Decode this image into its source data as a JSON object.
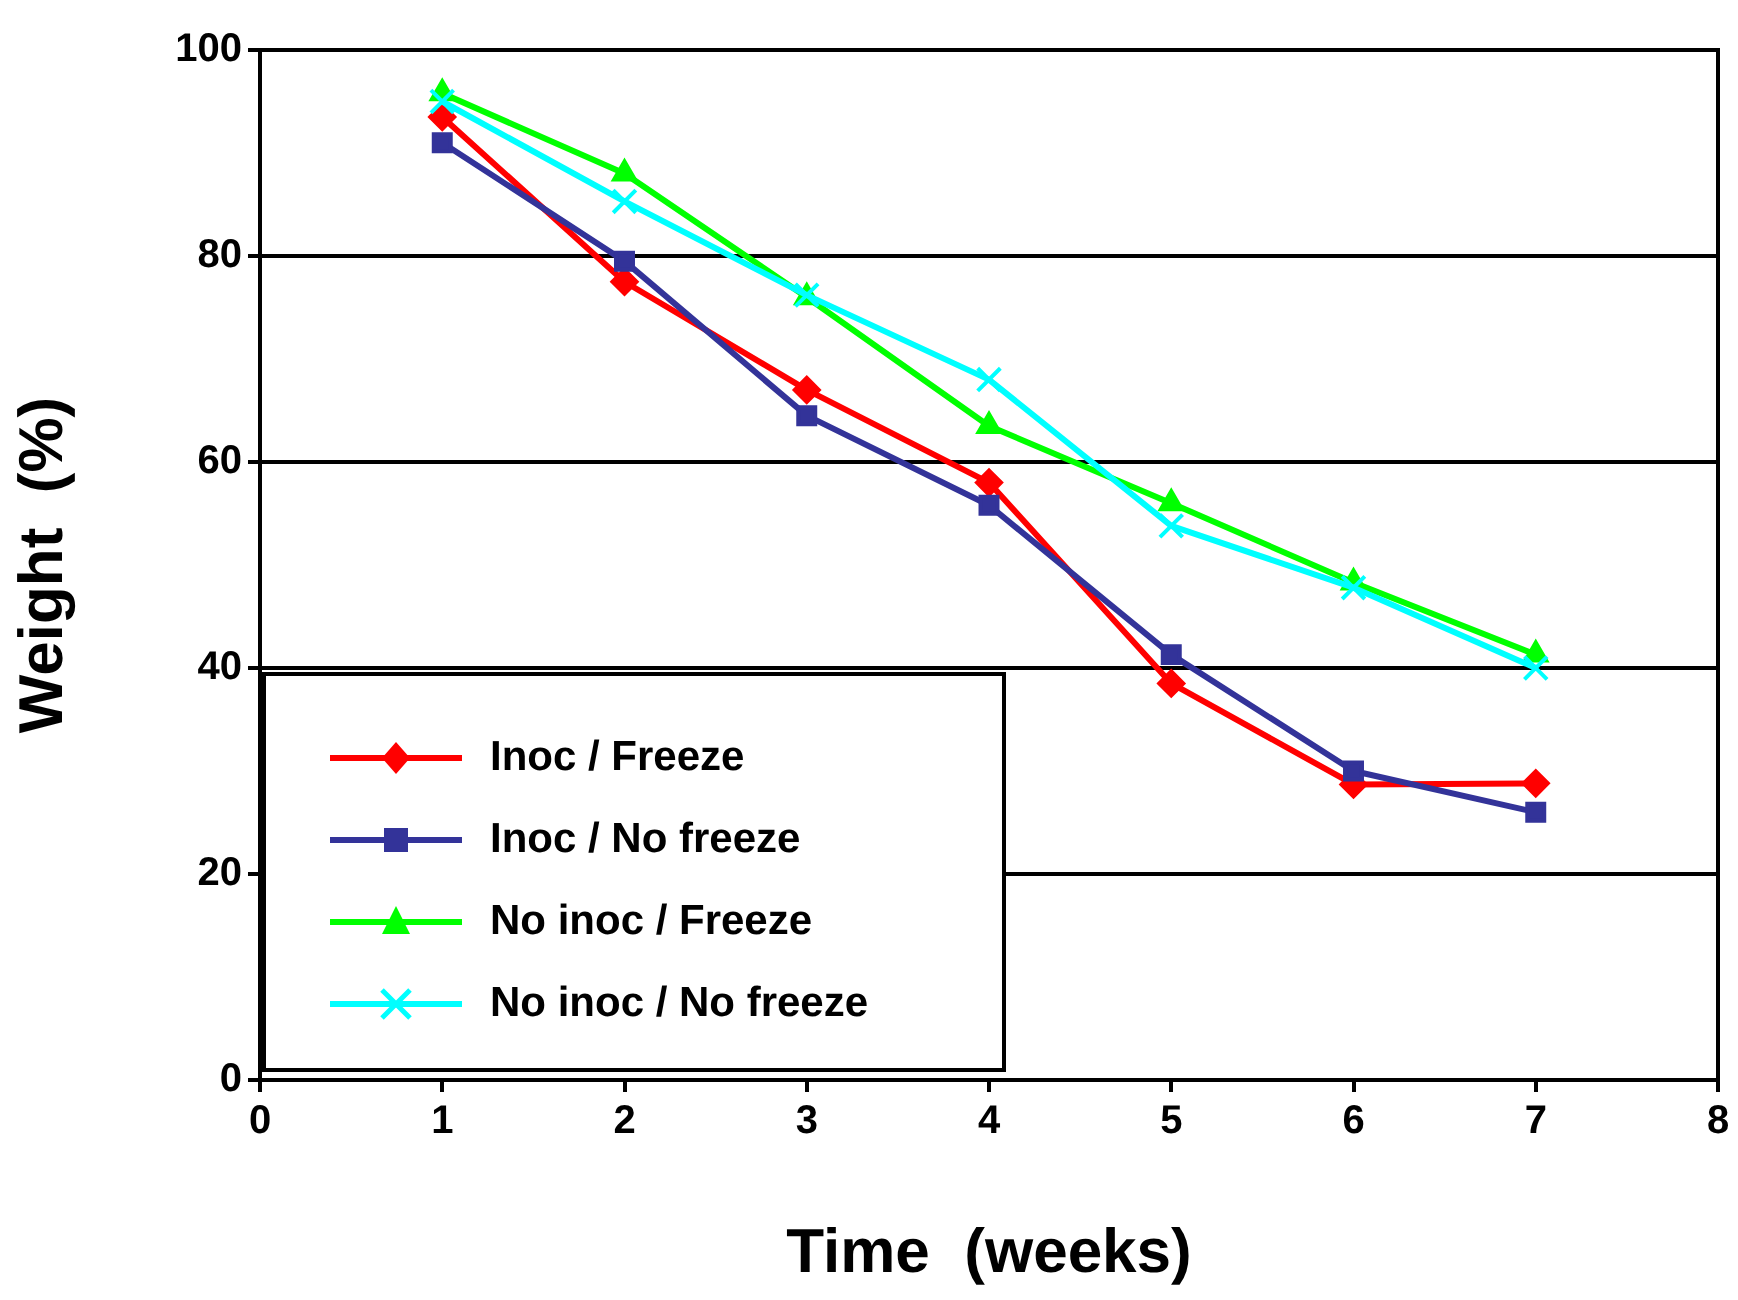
{
  "chart_data": {
    "type": "line",
    "xlabel": "Time  (weeks)",
    "ylabel": "Weight  (%)",
    "x": [
      1,
      2,
      3,
      4,
      5,
      6,
      7
    ],
    "xlim": [
      0,
      8
    ],
    "xticks": [
      0,
      1,
      2,
      3,
      4,
      5,
      6,
      7,
      8
    ],
    "ylim": [
      0,
      100
    ],
    "yticks": [
      0,
      20,
      40,
      60,
      80,
      100
    ],
    "grid": "y",
    "legend": "bottom left",
    "series": [
      {
        "name": "Inoc / Freeze",
        "color": "#ff0000",
        "marker": "diamond",
        "values": [
          93.5,
          77.5,
          67,
          58,
          38.5,
          28.7,
          28.8
        ]
      },
      {
        "name": "Inoc / No freeze",
        "color": "#333399",
        "marker": "square",
        "values": [
          91,
          79.5,
          64.5,
          55.8,
          41.3,
          30,
          26
        ]
      },
      {
        "name": "No inoc / Freeze",
        "color": "#00ff00",
        "marker": "triangle",
        "values": [
          95.8,
          88,
          76,
          63.5,
          56,
          48.3,
          41.3
        ]
      },
      {
        "name": "No inoc / No freeze",
        "color": "#00ffff",
        "marker": "cross",
        "values": [
          95,
          85.3,
          76.2,
          68,
          53.8,
          47.8,
          40
        ]
      }
    ]
  }
}
